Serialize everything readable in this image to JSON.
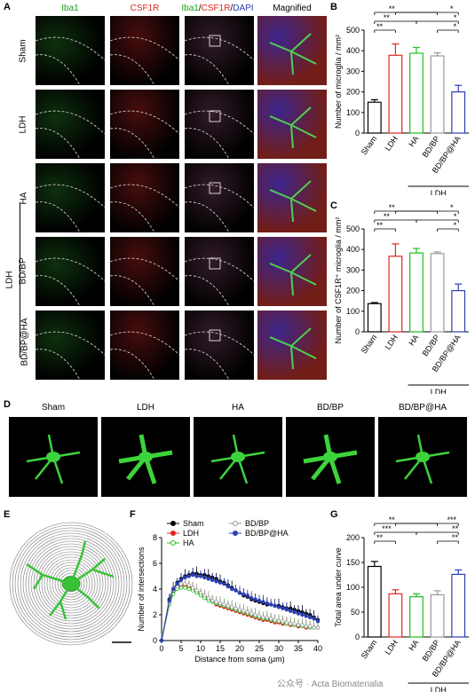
{
  "panels": {
    "A": "A",
    "B": "B",
    "C": "C",
    "D": "D",
    "E": "E",
    "F": "F",
    "G": "G"
  },
  "panel_a": {
    "columns": [
      "Iba1",
      "CSF1R",
      "Iba1/CSF1R/DAPI",
      "Magnified"
    ],
    "column_parts": {
      "iba1": "Iba1",
      "slash1": "/",
      "csf1r": "CSF1R",
      "slash2": "/",
      "dapi": "DAPI"
    },
    "rows": [
      "Sham",
      "LDH",
      "HA",
      "BD/BP",
      "BD/BP@HA"
    ],
    "group_label": "LDH",
    "colors": {
      "iba1": "#1a9e1a",
      "csf1r": "#e0261e",
      "dapi": "#2b3fb3"
    }
  },
  "panel_d": {
    "labels": [
      "Sham",
      "LDH",
      "HA",
      "BD/BP",
      "BD/BP@HA"
    ]
  },
  "watermark": "公众号 · Acta Biomaterialia",
  "chart_data": [
    {
      "id": "B",
      "type": "bar",
      "ylabel": "Number of microglia / mm²",
      "categories": [
        "Sham",
        "LDH",
        "HA",
        "BD/BP",
        "BD/BP@HA"
      ],
      "values": [
        150,
        378,
        388,
        375,
        200
      ],
      "errors": [
        12,
        55,
        28,
        15,
        32
      ],
      "colors": [
        "#000000",
        "#e0261e",
        "#1fbf1f",
        "#999999",
        "#2b3fb3"
      ],
      "ylim": [
        0,
        500
      ],
      "yticks": [
        0,
        100,
        200,
        300,
        400,
        500
      ],
      "group_label": "LDH",
      "significance": [
        "**",
        "**",
        "**",
        "*",
        "*",
        "*"
      ]
    },
    {
      "id": "C",
      "type": "bar",
      "ylabel": "Number of CSF1R⁺ microglia / mm²",
      "categories": [
        "Sham",
        "LDH",
        "HA",
        "BD/BP",
        "BD/BP@HA"
      ],
      "values": [
        137,
        367,
        383,
        380,
        200
      ],
      "errors": [
        5,
        60,
        22,
        8,
        32
      ],
      "colors": [
        "#000000",
        "#e0261e",
        "#1fbf1f",
        "#999999",
        "#2b3fb3"
      ],
      "ylim": [
        0,
        500
      ],
      "yticks": [
        0,
        100,
        200,
        300,
        400,
        500
      ],
      "group_label": "LDH",
      "significance": [
        "**",
        "**",
        "**",
        "*",
        "*",
        "*"
      ]
    },
    {
      "id": "F",
      "type": "line",
      "xlabel": "Distance from soma  (μm)",
      "ylabel": "Number of intersections",
      "xlim": [
        0,
        40
      ],
      "ylim": [
        0,
        8
      ],
      "xticks": [
        0,
        5,
        10,
        15,
        20,
        25,
        30,
        35,
        40
      ],
      "yticks": [
        0,
        2,
        4,
        6,
        8
      ],
      "legend": [
        "Sham",
        "LDH",
        "HA",
        "BD/BP",
        "BD/BP@HA"
      ],
      "series": [
        {
          "name": "Sham",
          "color": "#000000",
          "marker": "filled",
          "x": [
            0,
            2,
            3,
            4,
            5,
            6,
            7,
            8,
            9,
            10,
            11,
            12,
            13,
            14,
            15,
            16,
            17,
            18,
            19,
            20,
            21,
            22,
            23,
            24,
            25,
            26,
            27,
            28,
            29,
            30,
            31,
            32,
            33,
            34,
            35,
            36,
            37,
            38,
            39,
            40
          ],
          "y": [
            0,
            3.2,
            4.0,
            4.5,
            4.8,
            5.0,
            5.1,
            5.2,
            5.2,
            5.1,
            5.1,
            5.0,
            4.9,
            4.8,
            4.6,
            4.5,
            4.3,
            4.1,
            3.9,
            3.7,
            3.5,
            3.4,
            3.2,
            3.1,
            3.0,
            2.9,
            2.8,
            2.8,
            2.7,
            2.7,
            2.6,
            2.5,
            2.5,
            2.4,
            2.3,
            2.2,
            2.1,
            2.0,
            1.8,
            1.6
          ]
        },
        {
          "name": "LDH",
          "color": "#e0261e",
          "marker": "filled",
          "x": [
            0,
            2,
            3,
            4,
            5,
            6,
            7,
            8,
            9,
            10,
            11,
            12,
            13,
            14,
            15,
            16,
            17,
            18,
            19,
            20,
            21,
            22,
            23,
            24,
            25,
            26,
            27,
            28,
            29,
            30,
            31,
            32,
            33,
            34,
            35,
            36,
            37,
            38,
            39,
            40
          ],
          "y": [
            0,
            3.0,
            3.8,
            4.1,
            4.3,
            4.3,
            4.2,
            4.0,
            3.8,
            3.6,
            3.4,
            3.2,
            3.0,
            2.8,
            2.7,
            2.6,
            2.5,
            2.4,
            2.3,
            2.2,
            2.1,
            2.0,
            1.9,
            1.8,
            1.7,
            1.6,
            1.6,
            1.5,
            1.4,
            1.4,
            1.3,
            1.3,
            1.2,
            1.2,
            1.1,
            1.1,
            1.0,
            1.0,
            1.0,
            1.0
          ]
        },
        {
          "name": "HA",
          "color": "#1fbf1f",
          "marker": "open",
          "x": [
            0,
            2,
            3,
            4,
            5,
            6,
            7,
            8,
            9,
            10,
            11,
            12,
            13,
            14,
            15,
            16,
            17,
            18,
            19,
            20,
            21,
            22,
            23,
            24,
            25,
            26,
            27,
            28,
            29,
            30,
            31,
            32,
            33,
            34,
            35,
            36,
            37,
            38,
            39,
            40
          ],
          "y": [
            0,
            2.8,
            3.6,
            4.0,
            4.1,
            4.1,
            4.0,
            3.9,
            3.7,
            3.5,
            3.3,
            3.1,
            3.0,
            2.9,
            2.8,
            2.7,
            2.6,
            2.5,
            2.4,
            2.3,
            2.2,
            2.1,
            2.0,
            1.9,
            1.8,
            1.7,
            1.7,
            1.6,
            1.5,
            1.5,
            1.4,
            1.3,
            1.3,
            1.2,
            1.2,
            1.1,
            1.1,
            1.0,
            1.0,
            1.0
          ]
        },
        {
          "name": "BD/BP",
          "color": "#999999",
          "marker": "open",
          "x": [
            0,
            2,
            3,
            4,
            5,
            6,
            7,
            8,
            9,
            10,
            11,
            12,
            13,
            14,
            15,
            16,
            17,
            18,
            19,
            20,
            21,
            22,
            23,
            24,
            25,
            26,
            27,
            28,
            29,
            30,
            31,
            32,
            33,
            34,
            35,
            36,
            37,
            38,
            39,
            40
          ],
          "y": [
            0,
            3.0,
            3.9,
            4.2,
            4.4,
            4.4,
            4.3,
            4.1,
            3.9,
            3.7,
            3.5,
            3.3,
            3.1,
            3.0,
            2.9,
            2.8,
            2.7,
            2.6,
            2.5,
            2.4,
            2.3,
            2.2,
            2.1,
            2.0,
            1.9,
            1.8,
            1.8,
            1.7,
            1.6,
            1.5,
            1.5,
            1.4,
            1.3,
            1.3,
            1.2,
            1.2,
            1.1,
            1.1,
            1.0,
            1.0
          ]
        },
        {
          "name": "BD/BP@HA",
          "color": "#2b3fb3",
          "marker": "filled",
          "x": [
            0,
            2,
            3,
            4,
            5,
            6,
            7,
            8,
            9,
            10,
            11,
            12,
            13,
            14,
            15,
            16,
            17,
            18,
            19,
            20,
            21,
            22,
            23,
            24,
            25,
            26,
            27,
            28,
            29,
            30,
            31,
            32,
            33,
            34,
            35,
            36,
            37,
            38,
            39,
            40
          ],
          "y": [
            0,
            3.1,
            4.0,
            4.4,
            4.7,
            4.9,
            5.0,
            5.1,
            5.0,
            5.0,
            4.9,
            4.8,
            4.7,
            4.6,
            4.5,
            4.4,
            4.2,
            4.0,
            3.9,
            3.7,
            3.6,
            3.5,
            3.3,
            3.2,
            3.1,
            3.0,
            2.9,
            2.8,
            2.7,
            2.6,
            2.5,
            2.4,
            2.3,
            2.2,
            2.1,
            2.0,
            1.9,
            1.8,
            1.7,
            1.5
          ]
        }
      ]
    },
    {
      "id": "G",
      "type": "bar",
      "ylabel": "Total area under curve",
      "categories": [
        "Sham",
        "LDH",
        "HA",
        "BD/BP",
        "BD/BP@HA"
      ],
      "values": [
        142,
        87,
        81,
        85,
        126
      ],
      "errors": [
        10,
        8,
        6,
        8,
        9
      ],
      "colors": [
        "#000000",
        "#e0261e",
        "#1fbf1f",
        "#999999",
        "#2b3fb3"
      ],
      "ylim": [
        0,
        200
      ],
      "yticks": [
        0,
        50,
        100,
        150,
        200
      ],
      "group_label": "LDH",
      "significance": [
        "**",
        "***",
        "**",
        "***",
        "**",
        "**"
      ]
    }
  ]
}
